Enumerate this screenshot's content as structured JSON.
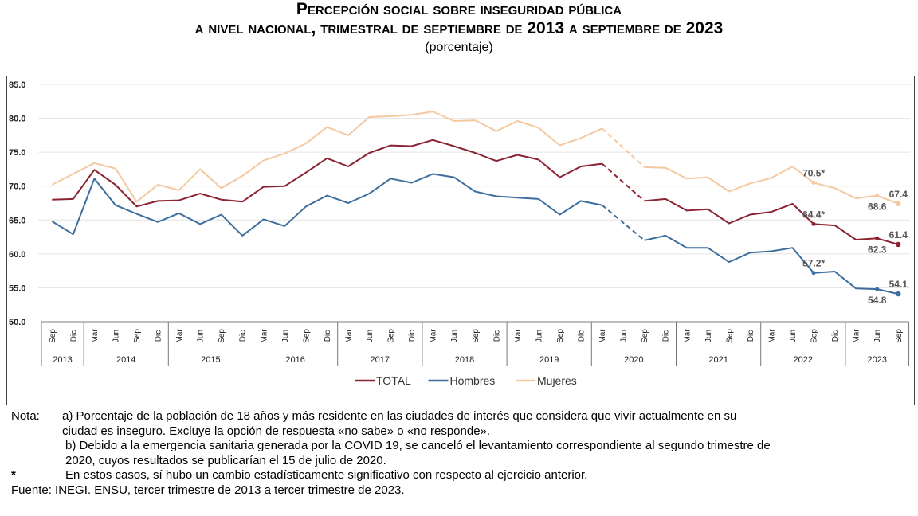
{
  "chart_data": {
    "type": "line",
    "title": "Percepción social sobre inseguridad pública",
    "title_line2": "a nivel nacional, trimestral de septiembre de 2013 a septiembre de 2023",
    "subtitle": "(porcentaje)",
    "ylim": [
      50,
      85
    ],
    "yticks": [
      "50.0",
      "55.0",
      "60.0",
      "65.0",
      "70.0",
      "75.0",
      "80.0",
      "85.0"
    ],
    "grid": true,
    "legend_position": "bottom",
    "years": [
      {
        "label": "2013",
        "months": [
          "Sep",
          "Dic"
        ]
      },
      {
        "label": "2014",
        "months": [
          "Mar",
          "Jun",
          "Sep",
          "Dic"
        ]
      },
      {
        "label": "2015",
        "months": [
          "Mar",
          "Jun",
          "Sep",
          "Dic"
        ]
      },
      {
        "label": "2016",
        "months": [
          "Mar",
          "Jun",
          "Sep",
          "Dic"
        ]
      },
      {
        "label": "2017",
        "months": [
          "Mar",
          "Jun",
          "Sep",
          "Dic"
        ]
      },
      {
        "label": "2018",
        "months": [
          "Mar",
          "Jun",
          "Sep",
          "Dic"
        ]
      },
      {
        "label": "2019",
        "months": [
          "Mar",
          "Jun",
          "Sep",
          "Dic"
        ]
      },
      {
        "label": "2020",
        "months": [
          "Mar",
          "Jun",
          "Sep",
          "Dic"
        ]
      },
      {
        "label": "2021",
        "months": [
          "Mar",
          "Jun",
          "Sep",
          "Dic"
        ]
      },
      {
        "label": "2022",
        "months": [
          "Mar",
          "Jun",
          "Sep",
          "Dic"
        ]
      },
      {
        "label": "2023",
        "months": [
          "Mar",
          "Jun",
          "Sep"
        ]
      }
    ],
    "series": [
      {
        "name": "TOTAL",
        "color": "#8B2332",
        "values": [
          68.0,
          68.1,
          72.4,
          70.2,
          67.0,
          67.8,
          67.9,
          68.9,
          68.0,
          67.7,
          69.9,
          70.0,
          72.0,
          74.1,
          72.9,
          74.9,
          76.0,
          75.9,
          76.8,
          75.9,
          74.9,
          73.7,
          74.6,
          73.9,
          71.3,
          72.9,
          73.3,
          null,
          67.8,
          68.1,
          66.4,
          66.6,
          64.5,
          65.8,
          66.2,
          67.4,
          64.4,
          64.2,
          62.1,
          62.3,
          61.4
        ],
        "labels": [
          {
            "index": 36,
            "text": "64.4*",
            "pos": "above"
          },
          {
            "index": 39,
            "text": "62.3",
            "pos": "below"
          },
          {
            "index": 40,
            "text": "61.4",
            "pos": "above"
          }
        ]
      },
      {
        "name": "Hombres",
        "color": "#3E6E9E",
        "values": [
          64.8,
          62.9,
          71.1,
          67.2,
          65.9,
          64.7,
          66.0,
          64.4,
          65.8,
          62.7,
          65.1,
          64.1,
          67.0,
          68.6,
          67.5,
          68.9,
          71.1,
          70.5,
          71.8,
          71.3,
          69.2,
          68.5,
          68.3,
          68.1,
          65.8,
          67.8,
          67.2,
          null,
          62.0,
          62.7,
          60.9,
          60.9,
          58.8,
          60.2,
          60.4,
          60.9,
          57.2,
          57.4,
          54.9,
          54.8,
          54.1
        ],
        "labels": [
          {
            "index": 36,
            "text": "57.2*",
            "pos": "above"
          },
          {
            "index": 39,
            "text": "54.8",
            "pos": "below"
          },
          {
            "index": 40,
            "text": "54.1",
            "pos": "above"
          }
        ]
      },
      {
        "name": "Mujeres",
        "color": "#F5C9A0",
        "values": [
          70.2,
          71.8,
          73.4,
          72.6,
          67.7,
          70.2,
          69.4,
          72.5,
          69.7,
          71.5,
          73.8,
          74.8,
          76.3,
          78.7,
          77.5,
          80.2,
          80.3,
          80.5,
          81.0,
          79.6,
          79.7,
          78.1,
          79.6,
          78.6,
          76.0,
          77.1,
          78.5,
          null,
          72.8,
          72.7,
          71.1,
          71.3,
          69.2,
          70.4,
          71.2,
          72.9,
          70.5,
          69.7,
          68.2,
          68.6,
          67.4
        ],
        "labels": [
          {
            "index": 36,
            "text": "70.5*",
            "pos": "above"
          },
          {
            "index": 39,
            "text": "68.6",
            "pos": "below"
          },
          {
            "index": 40,
            "text": "67.4",
            "pos": "above"
          }
        ]
      }
    ]
  },
  "notes": {
    "nota_label": "Nota:",
    "a": "a) Porcentaje de la población de 18 años y más residente en las ciudades de interés que considera que vivir actualmente en su",
    "a2": "ciudad es inseguro. Excluye la opción de respuesta «no sabe» o «no responde».",
    "b": "b) Debido a la emergencia sanitaria generada por la COVID 19, se canceló el levantamiento correspondiente al segundo trimestre de",
    "b2": "2020, cuyos resultados se publicarían el 15 de julio de 2020.",
    "star_label": "*",
    "star": "En estos casos, sí hubo un cambio estadísticamente significativo con respecto al ejercicio anterior.",
    "fuente_label": "Fuente:",
    "fuente_org": "INEGI. ENSU",
    "fuente_text": ", tercer trimestre de 2013 a tercer trimestre de 2023."
  }
}
